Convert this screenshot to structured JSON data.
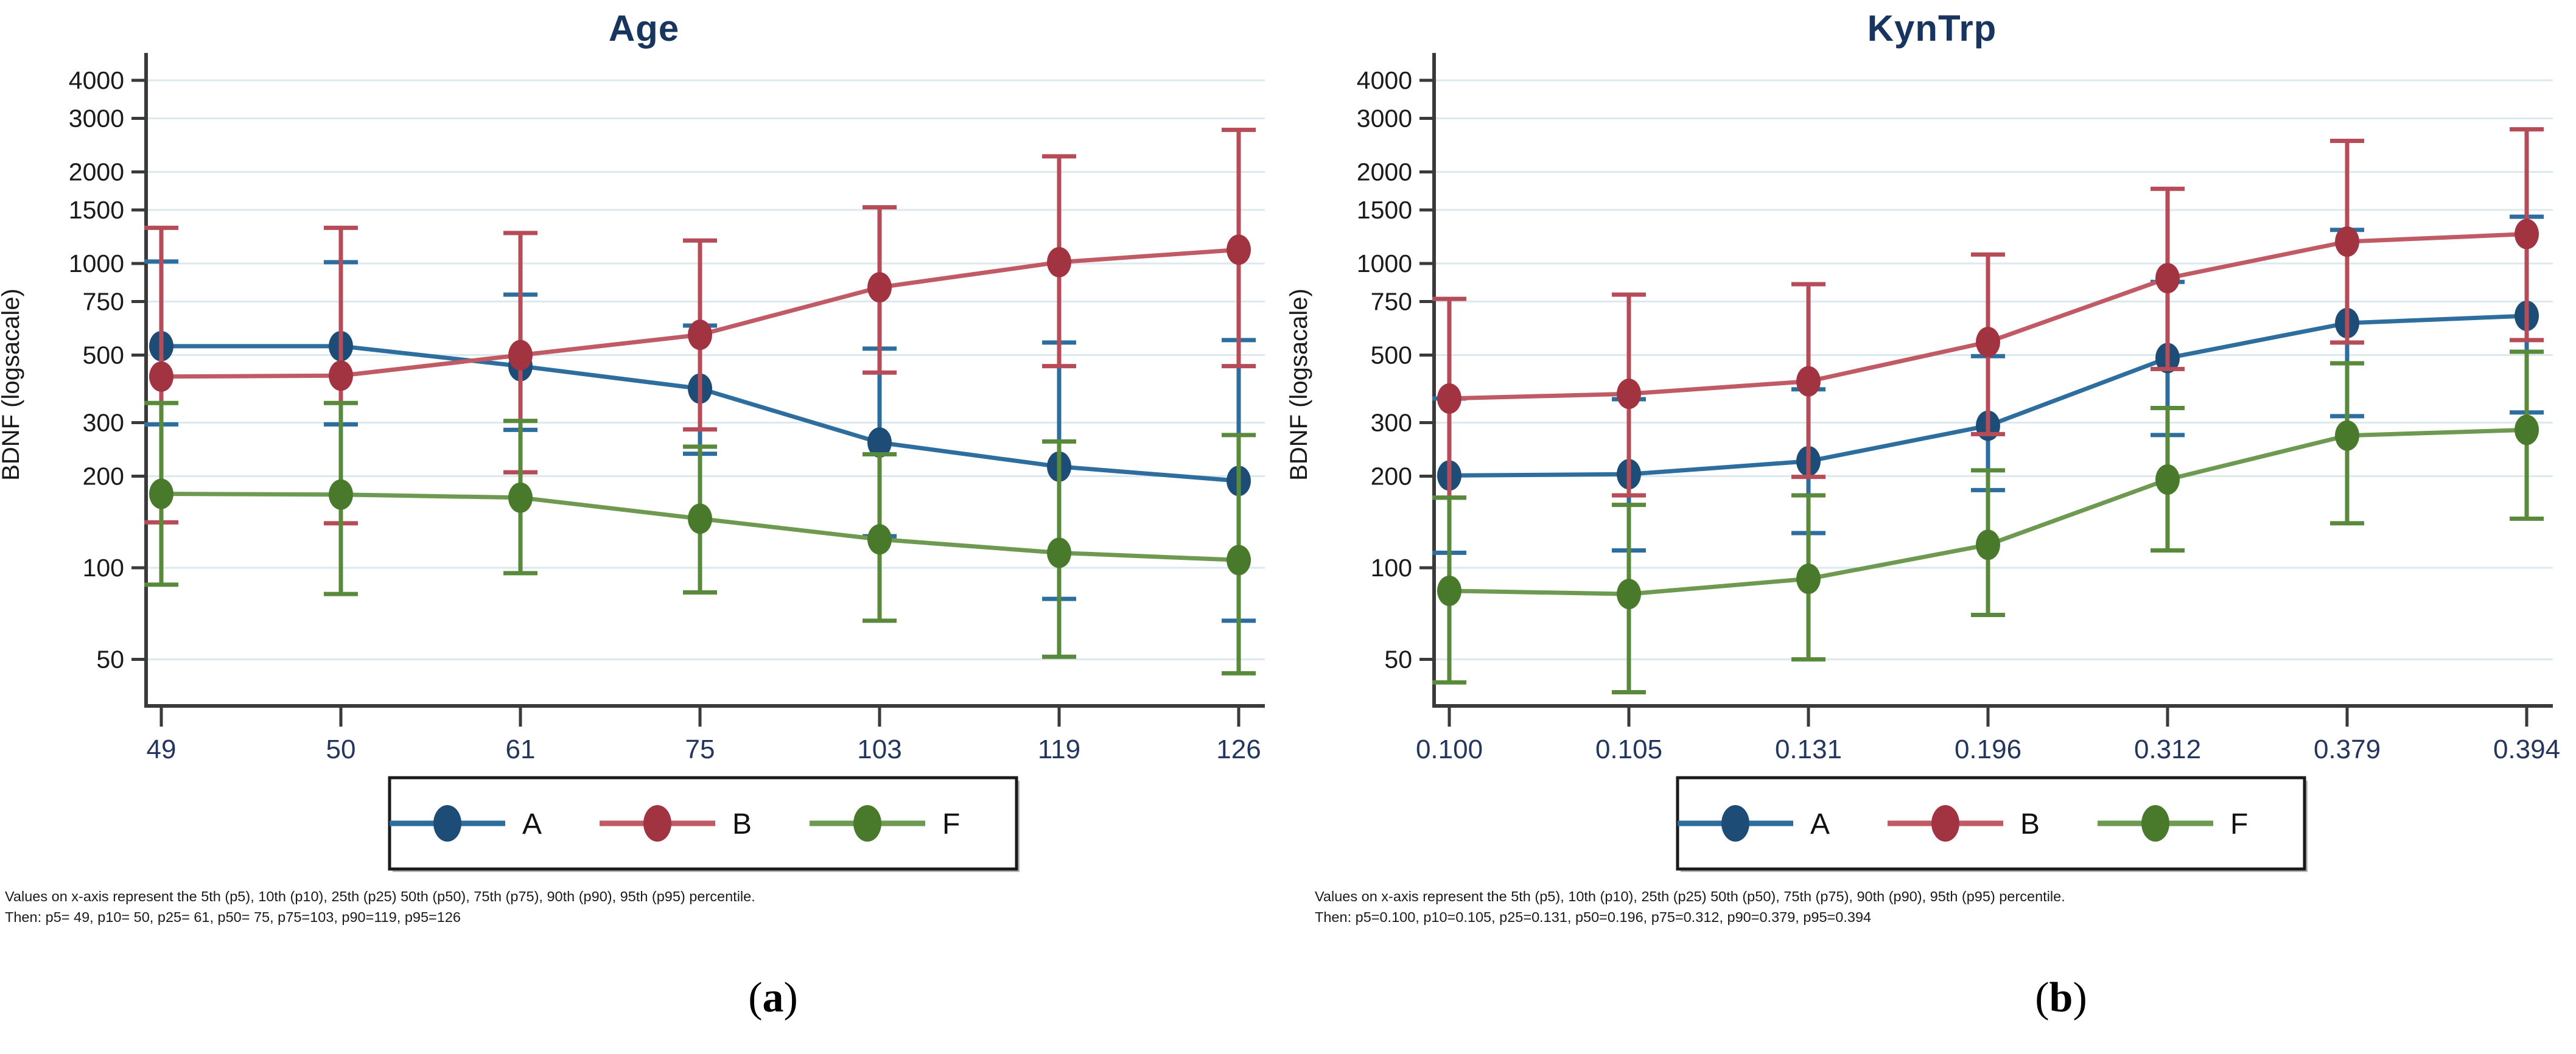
{
  "page": {
    "background": "#ffffff",
    "grid_color": "#dce9ee",
    "axis_color": "#3a3a3a",
    "title_color": "#17355e",
    "xtick_color": "#24365e",
    "ytick_color": "#1a1a1a"
  },
  "captions": {
    "a": {
      "open": "(",
      "letter": "a",
      "close": ")"
    },
    "b": {
      "open": "(",
      "letter": "b",
      "close": ")"
    }
  },
  "chart_data": [
    {
      "type": "line",
      "title": "Age",
      "ylabel": "BDNF (logsacale)",
      "yscale": "log",
      "yticks": [
        4000,
        3000,
        2000,
        1500,
        1000,
        750,
        500,
        300,
        200,
        100,
        50
      ],
      "categories": [
        "49",
        "50",
        "61",
        "75",
        "103",
        "119",
        "126"
      ],
      "legend": [
        "A",
        "B",
        "F"
      ],
      "legend_position": "bottom-center-boxed",
      "grid": true,
      "series": [
        {
          "name": "A",
          "color_line": "#2e6e9e",
          "color_err": "#2e6e9e",
          "color_marker": "#1d4d77",
          "values": [
            535,
            535,
            460,
            388,
            258,
            215,
            193
          ],
          "lo": [
            296,
            296,
            284,
            237,
            127,
            79,
            67
          ],
          "hi": [
            1015,
            1010,
            790,
            625,
            525,
            550,
            560
          ]
        },
        {
          "name": "B",
          "color_line": "#c05a64",
          "color_err": "#b64c58",
          "color_marker": "#a23340",
          "values": [
            425,
            428,
            500,
            583,
            835,
            1010,
            1110
          ],
          "lo": [
            141,
            140,
            206,
            285,
            438,
            460,
            460
          ],
          "hi": [
            1310,
            1310,
            1260,
            1190,
            1530,
            2250,
            2750
          ]
        },
        {
          "name": "F",
          "color_line": "#6d9a50",
          "color_err": "#598a3c",
          "color_marker": "#49792b",
          "values": [
            175,
            174,
            170,
            145,
            124,
            112,
            106
          ],
          "lo": [
            88,
            82,
            96,
            83,
            67,
            51,
            45
          ],
          "hi": [
            348,
            348,
            304,
            250,
            236,
            260,
            273
          ]
        }
      ],
      "footnote1": "Values on x-axis represent the 5th (p5), 10th (p10), 25th (p25) 50th (p50), 75th (p75), 90th (p90), 95th (p95) percentile.",
      "footnote2": "Then: p5= 49, p10= 50, p25= 61, p50= 75, p75=103, p90=119, p95=126"
    },
    {
      "type": "line",
      "title": "KynTrp",
      "ylabel": "BDNF (logsacale)",
      "yscale": "log",
      "yticks": [
        4000,
        3000,
        2000,
        1500,
        1000,
        750,
        500,
        300,
        200,
        100,
        50
      ],
      "categories": [
        "0.100",
        "0.105",
        "0.131",
        "0.196",
        "0.312",
        "0.379",
        "0.394"
      ],
      "legend": [
        "A",
        "B",
        "F"
      ],
      "legend_position": "bottom-center-boxed",
      "grid": true,
      "series": [
        {
          "name": "A",
          "color_line": "#2e6e9e",
          "color_err": "#2e6e9e",
          "color_marker": "#1d4d77",
          "values": [
            201,
            203,
            224,
            293,
            489,
            637,
            673
          ],
          "lo": [
            112,
            114,
            130,
            180,
            273,
            315,
            324
          ],
          "hi": [
            360,
            358,
            386,
            496,
            870,
            1290,
            1425
          ]
        },
        {
          "name": "B",
          "color_line": "#c05a64",
          "color_err": "#b64c58",
          "color_marker": "#a23340",
          "values": [
            360,
            373,
            410,
            552,
            895,
            1180,
            1250
          ],
          "lo": [
            170,
            173,
            199,
            275,
            450,
            550,
            560
          ],
          "hi": [
            765,
            790,
            855,
            1070,
            1760,
            2530,
            2760
          ]
        },
        {
          "name": "F",
          "color_line": "#6d9a50",
          "color_err": "#598a3c",
          "color_marker": "#49792b",
          "values": [
            84,
            82,
            92,
            119,
            195,
            272,
            284
          ],
          "lo": [
            42,
            39,
            50,
            70,
            114,
            140,
            145
          ],
          "hi": [
            170,
            161,
            173,
            209,
            335,
            470,
            513
          ]
        }
      ],
      "footnote1": "Values on x-axis represent the 5th (p5), 10th (p10), 25th (p25) 50th (p50), 75th (p75), 90th (p90), 95th (p95) percentile.",
      "footnote2": "Then: p5=0.100, p10=0.105, p25=0.131, p50=0.196, p75=0.312, p90=0.379, p95=0.394"
    }
  ]
}
